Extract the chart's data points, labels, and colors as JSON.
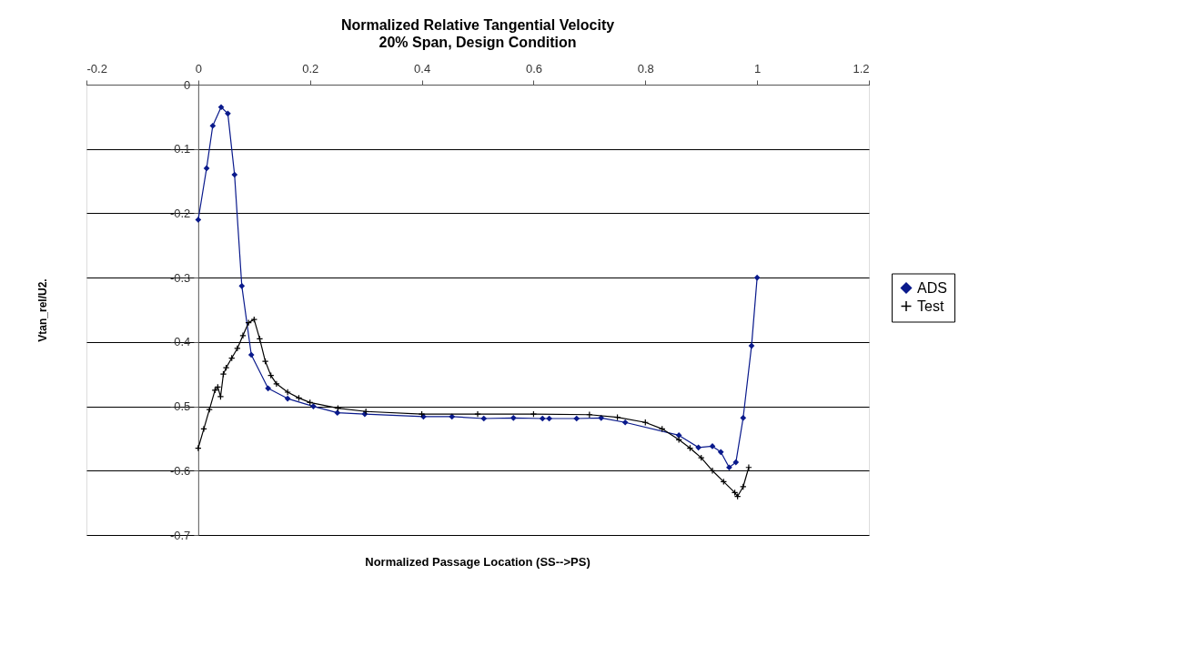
{
  "chart_data": {
    "type": "line",
    "title": "Normalized Relative Tangential Velocity",
    "subtitle": "20% Span, Design Condition",
    "xlabel": "Normalized Passage Location (SS-->PS)",
    "ylabel": "Vtan_rel/U2.",
    "xlim": [
      -0.2,
      1.2
    ],
    "xticks": [
      -0.2,
      0,
      0.2,
      0.4,
      0.6,
      0.8,
      1,
      1.2
    ],
    "ylim": [
      -0.7,
      0
    ],
    "yticks": [
      -0.7,
      -0.6,
      -0.5,
      -0.4,
      -0.3,
      -0.2,
      -0.1,
      0
    ],
    "grid": "y",
    "legend": "right",
    "series": [
      {
        "name": "ADS",
        "color": "#0a1a8c",
        "marker": "diamond",
        "line_style": "solid",
        "x": [
          0,
          0.015,
          0.026,
          0.041,
          0.053,
          0.065,
          0.078,
          0.095,
          0.125,
          0.16,
          0.206,
          0.249,
          0.298,
          0.403,
          0.454,
          0.511,
          0.564,
          0.616,
          0.628,
          0.677,
          0.721,
          0.764,
          0.86,
          0.895,
          0.92,
          0.935,
          0.95,
          0.962,
          0.975,
          0.99,
          1.0
        ],
        "values": [
          -0.21,
          -0.13,
          -0.064,
          -0.035,
          -0.045,
          -0.14,
          -0.313,
          -0.42,
          -0.472,
          -0.488,
          -0.5,
          -0.51,
          -0.512,
          -0.516,
          -0.516,
          -0.519,
          -0.518,
          -0.519,
          -0.519,
          -0.519,
          -0.518,
          -0.525,
          -0.545,
          -0.564,
          -0.562,
          -0.571,
          -0.595,
          -0.587,
          -0.518,
          -0.406,
          -0.3
        ]
      },
      {
        "name": "Test",
        "color": "#000000",
        "marker": "cross",
        "line_style": "solid",
        "x": [
          0,
          0.01,
          0.02,
          0.03,
          0.035,
          0.04,
          0.045,
          0.05,
          0.06,
          0.07,
          0.08,
          0.09,
          0.1,
          0.11,
          0.12,
          0.13,
          0.14,
          0.16,
          0.18,
          0.2,
          0.25,
          0.3,
          0.4,
          0.5,
          0.6,
          0.7,
          0.75,
          0.8,
          0.83,
          0.86,
          0.88,
          0.9,
          0.92,
          0.94,
          0.96,
          0.965,
          0.975,
          0.985
        ],
        "values": [
          -0.565,
          -0.535,
          -0.505,
          -0.475,
          -0.47,
          -0.485,
          -0.45,
          -0.44,
          -0.425,
          -0.41,
          -0.39,
          -0.37,
          -0.365,
          -0.395,
          -0.43,
          -0.452,
          -0.465,
          -0.478,
          -0.487,
          -0.494,
          -0.503,
          -0.508,
          -0.512,
          -0.512,
          -0.512,
          -0.513,
          -0.517,
          -0.525,
          -0.535,
          -0.552,
          -0.565,
          -0.58,
          -0.6,
          -0.617,
          -0.634,
          -0.64,
          -0.625,
          -0.595
        ]
      }
    ]
  }
}
